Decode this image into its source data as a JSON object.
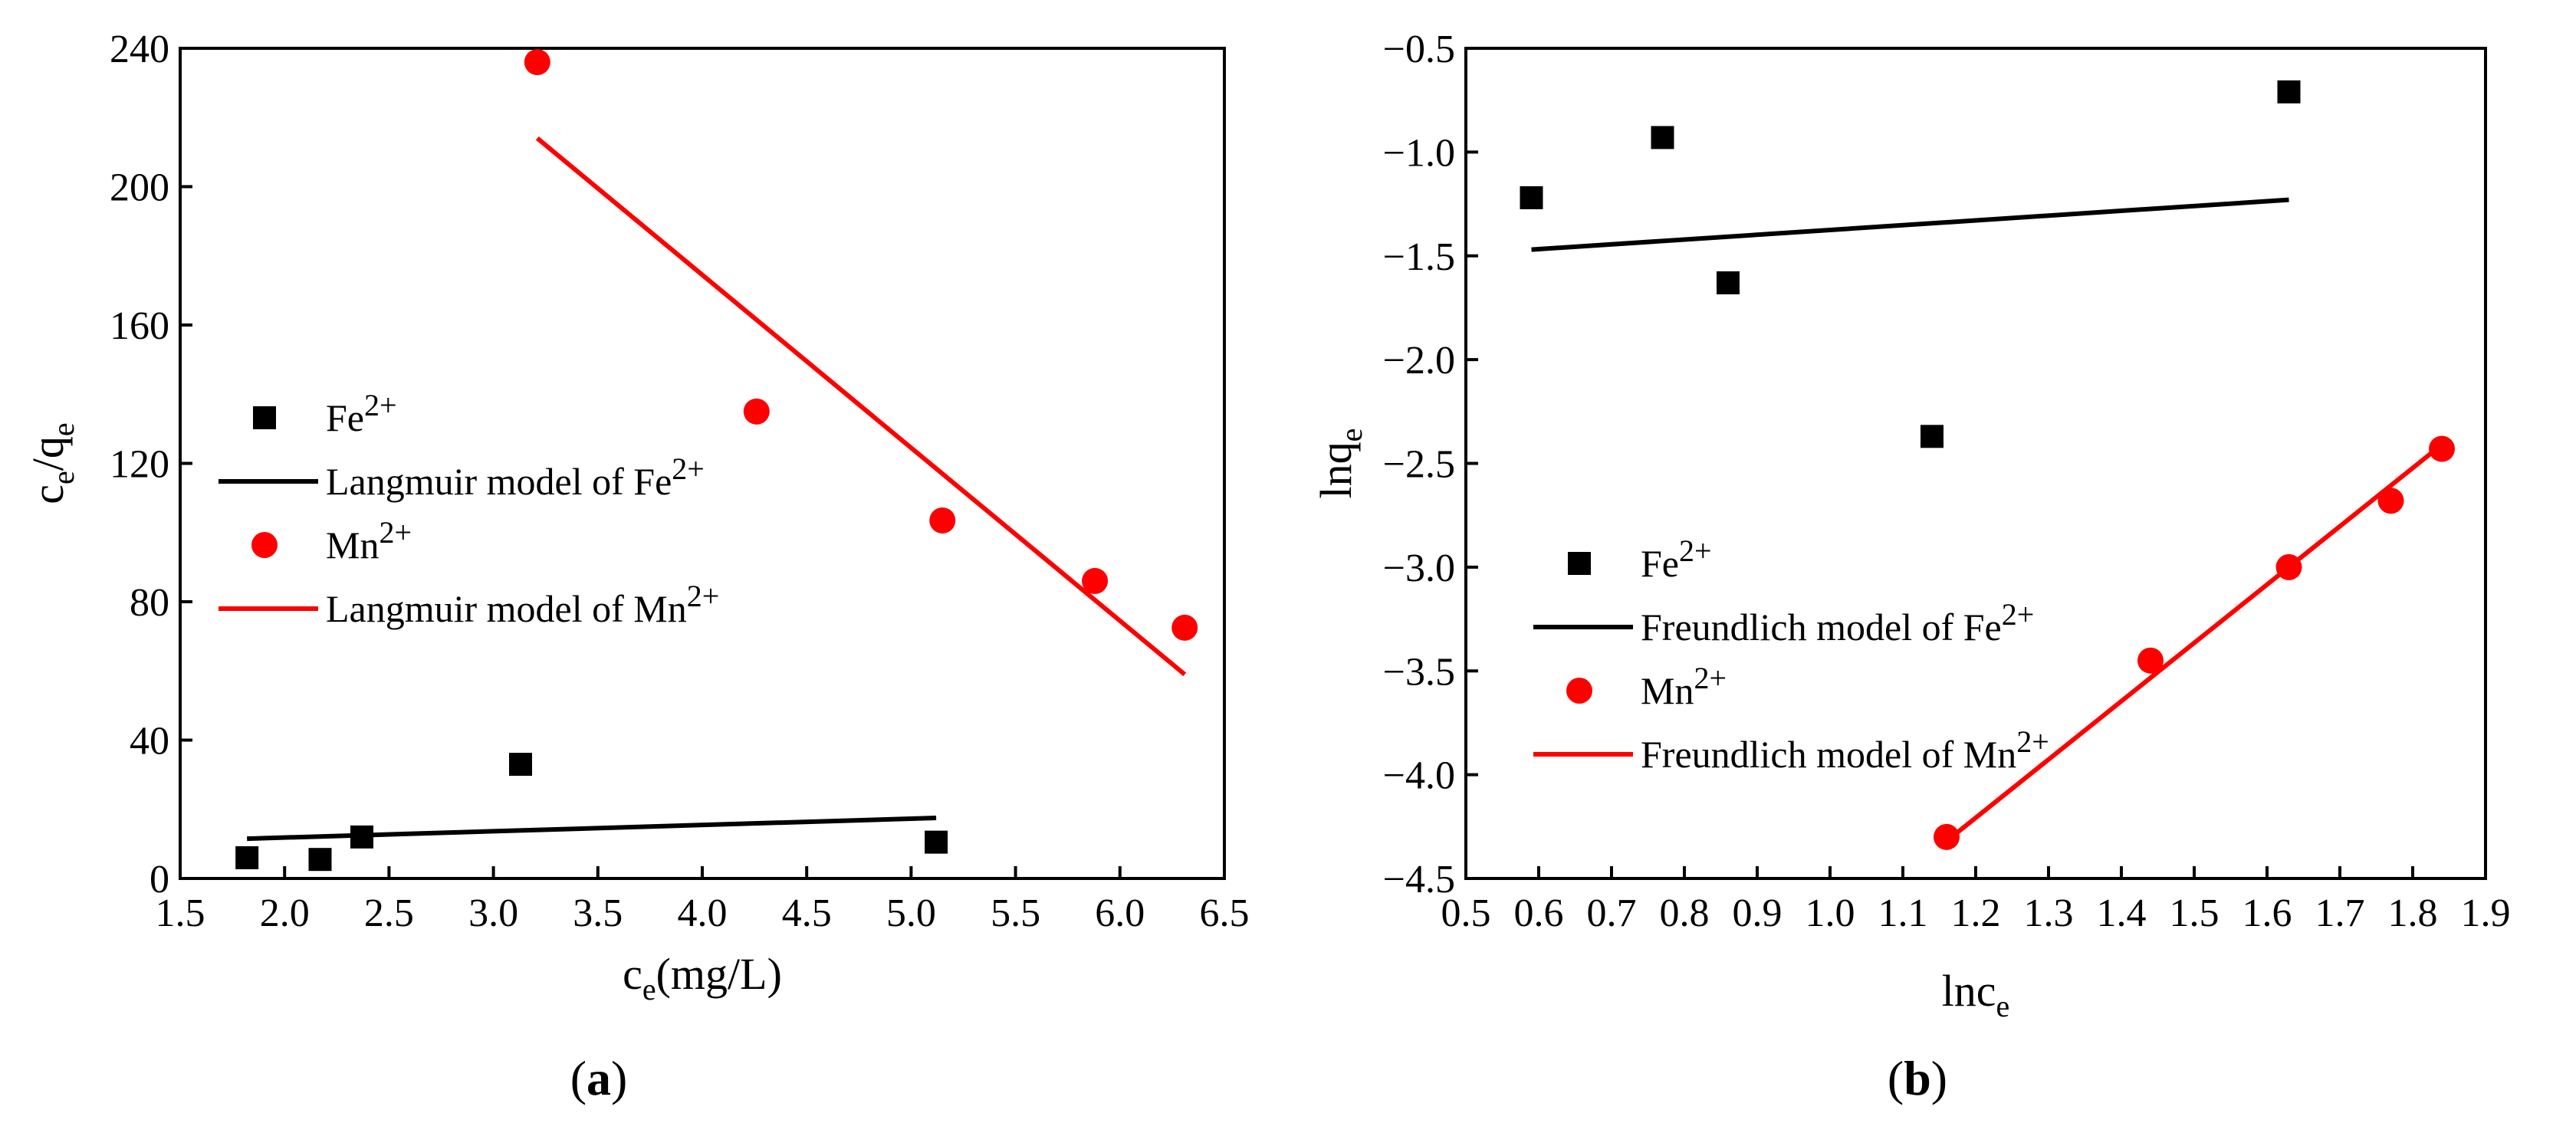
{
  "chart_data": [
    {
      "type": "scatter",
      "panel_label": "a",
      "xlabel": {
        "main": "c",
        "sub": "e",
        "rest": "(mg/L)"
      },
      "ylabel": {
        "parts": [
          {
            "t": "c",
            "s": ""
          },
          {
            "t": "e",
            "s": "sub"
          },
          {
            "t": "/q",
            "s": ""
          },
          {
            "t": "e",
            "s": "sub"
          }
        ]
      },
      "xlim": [
        1.5,
        6.5
      ],
      "ylim": [
        0,
        240
      ],
      "x_ticks": [
        1.5,
        2.0,
        2.5,
        3.0,
        3.5,
        4.0,
        4.5,
        5.0,
        5.5,
        6.0,
        6.5
      ],
      "y_ticks": [
        0,
        40,
        80,
        120,
        160,
        200,
        240
      ],
      "x_decimals": 1,
      "y_decimals": 0,
      "legend": [
        {
          "kind": "square",
          "color": "#000000",
          "text": "Fe",
          "sup": "2+"
        },
        {
          "kind": "line",
          "color": "#000000",
          "text": "Langmuir model of Fe",
          "sup": "2+"
        },
        {
          "kind": "circle",
          "color": "#ff0000",
          "text": "Mn",
          "sup": "2+"
        },
        {
          "kind": "line",
          "color": "#ff0000",
          "text": "Langmuir model of Mn",
          "sup": "2+"
        }
      ],
      "series": [
        {
          "name": "Fe2+",
          "kind": "square",
          "color": "#000000",
          "x": [
            1.82,
            2.17,
            2.37,
            3.13,
            5.12
          ],
          "y": [
            6,
            5.5,
            12,
            33,
            10.5
          ]
        },
        {
          "name": "Mn2+",
          "kind": "circle",
          "color": "#ff0000",
          "x": [
            3.21,
            4.26,
            5.15,
            5.88,
            6.31
          ],
          "y": [
            236,
            135,
            103.5,
            86,
            72.5
          ]
        }
      ],
      "fits": [
        {
          "name": "Langmuir model of Fe2+",
          "color": "#000000",
          "x": [
            1.82,
            5.12
          ],
          "y": [
            11.5,
            17.5
          ]
        },
        {
          "name": "Langmuir model of Mn2+",
          "color": "#ff0000",
          "x": [
            3.21,
            6.31
          ],
          "y": [
            214,
            59
          ]
        }
      ]
    },
    {
      "type": "scatter",
      "panel_label": "b",
      "xlabel": {
        "main": "lnc",
        "sub": "e",
        "rest": ""
      },
      "ylabel": {
        "parts": [
          {
            "t": "lnq",
            "s": ""
          },
          {
            "t": "e",
            "s": "sub"
          }
        ]
      },
      "xlim": [
        0.5,
        1.9
      ],
      "ylim": [
        -4.5,
        -0.5
      ],
      "x_ticks": [
        0.5,
        0.6,
        0.7,
        0.8,
        0.9,
        1.0,
        1.1,
        1.2,
        1.3,
        1.4,
        1.5,
        1.6,
        1.7,
        1.8,
        1.9
      ],
      "y_ticks": [
        -4.5,
        -4.0,
        -3.5,
        -3.0,
        -2.5,
        -2.0,
        -1.5,
        -1.0,
        -0.5
      ],
      "x_decimals": 1,
      "y_decimals": 1,
      "legend": [
        {
          "kind": "square",
          "color": "#000000",
          "text": "Fe",
          "sup": "2+"
        },
        {
          "kind": "line",
          "color": "#000000",
          "text": "Freundlich model of Fe",
          "sup": "2+"
        },
        {
          "kind": "circle",
          "color": "#ff0000",
          "text": "Mn",
          "sup": "2+"
        },
        {
          "kind": "line",
          "color": "#ff0000",
          "text": "Freundlich model of Mn",
          "sup": "2+"
        }
      ],
      "series": [
        {
          "name": "Fe2+",
          "kind": "square",
          "color": "#000000",
          "x": [
            0.59,
            0.77,
            0.86,
            1.14,
            1.63
          ],
          "y": [
            -1.22,
            -0.93,
            -1.63,
            -2.37,
            -0.71
          ]
        },
        {
          "name": "Mn2+",
          "kind": "circle",
          "color": "#ff0000",
          "x": [
            1.16,
            1.44,
            1.63,
            1.77,
            1.84
          ],
          "y": [
            -4.3,
            -3.45,
            -3.0,
            -2.68,
            -2.43
          ]
        }
      ],
      "fits": [
        {
          "name": "Freundlich model of Fe2+",
          "color": "#000000",
          "x": [
            0.59,
            1.63
          ],
          "y": [
            -1.47,
            -1.23
          ]
        },
        {
          "name": "Freundlich model of Mn2+",
          "color": "#ff0000",
          "x": [
            1.16,
            1.84
          ],
          "y": [
            -4.32,
            -2.41
          ]
        }
      ]
    }
  ]
}
